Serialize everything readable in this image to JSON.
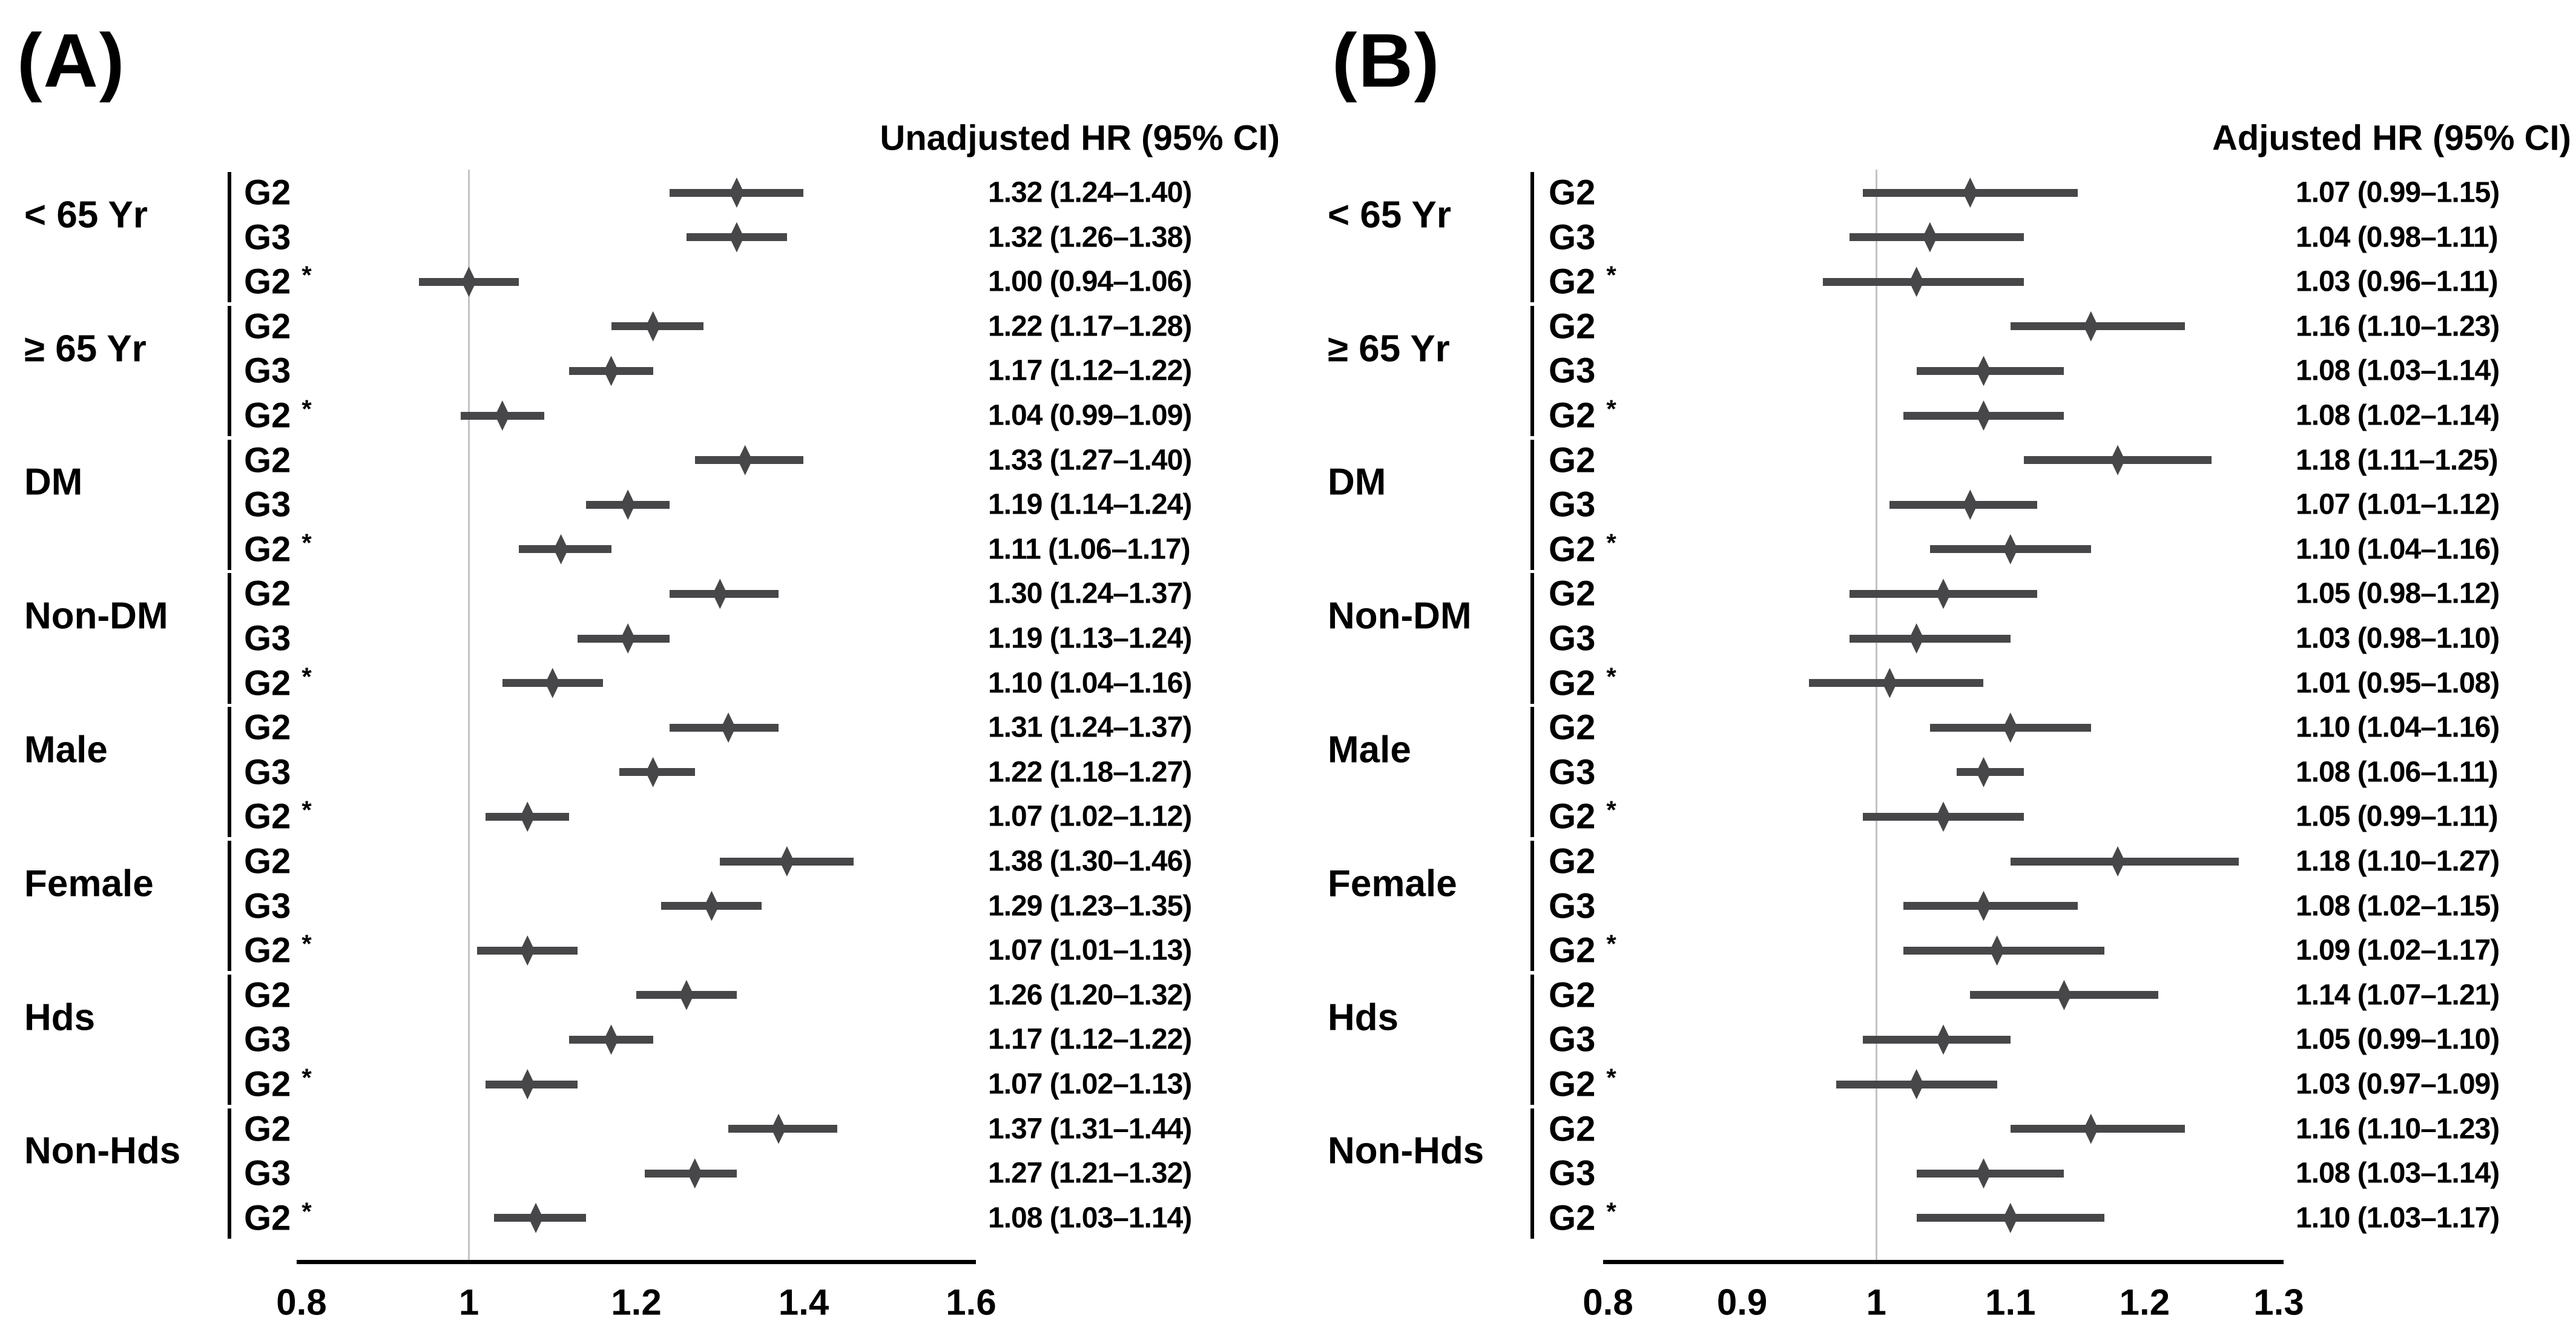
{
  "chart_data": [
    {
      "type": "forest",
      "panel": "A",
      "title": "(A)",
      "value_header": "Unadjusted HR (95% CI)",
      "xlim": [
        0.8,
        1.6
      ],
      "xticks": [
        0.8,
        1.0,
        1.2,
        1.4,
        1.6
      ],
      "xtick_labels": [
        "0.8",
        "1",
        "1.2",
        "1.4",
        "1.6"
      ],
      "ref_line": 1.0,
      "legend_position": "none",
      "grid": false,
      "groups": [
        {
          "label": "< 65 Yr",
          "rows": [
            {
              "label": "G2",
              "hr": 1.32,
              "ci": [
                1.24,
                1.4
              ],
              "text": "1.32 (1.24–1.40)"
            },
            {
              "label": "G3",
              "hr": 1.32,
              "ci": [
                1.26,
                1.38
              ],
              "text": "1.32 (1.26–1.38)"
            },
            {
              "label": "G2",
              "suffix": "*",
              "hr": 1.0,
              "ci": [
                0.94,
                1.06
              ],
              "text": "1.00 (0.94–1.06)"
            }
          ]
        },
        {
          "label": "≥ 65 Yr",
          "rows": [
            {
              "label": "G2",
              "hr": 1.22,
              "ci": [
                1.17,
                1.28
              ],
              "text": "1.22 (1.17–1.28)"
            },
            {
              "label": "G3",
              "hr": 1.17,
              "ci": [
                1.12,
                1.22
              ],
              "text": "1.17 (1.12–1.22)"
            },
            {
              "label": "G2",
              "suffix": "*",
              "hr": 1.04,
              "ci": [
                0.99,
                1.09
              ],
              "text": "1.04 (0.99–1.09)"
            }
          ]
        },
        {
          "label": "DM",
          "rows": [
            {
              "label": "G2",
              "hr": 1.33,
              "ci": [
                1.27,
                1.4
              ],
              "text": "1.33 (1.27–1.40)"
            },
            {
              "label": "G3",
              "hr": 1.19,
              "ci": [
                1.14,
                1.24
              ],
              "text": "1.19 (1.14–1.24)"
            },
            {
              "label": "G2",
              "suffix": "*",
              "hr": 1.11,
              "ci": [
                1.06,
                1.17
              ],
              "text": "1.11 (1.06–1.17)"
            }
          ]
        },
        {
          "label": "Non-DM",
          "rows": [
            {
              "label": "G2",
              "hr": 1.3,
              "ci": [
                1.24,
                1.37
              ],
              "text": "1.30 (1.24–1.37)"
            },
            {
              "label": "G3",
              "hr": 1.19,
              "ci": [
                1.13,
                1.24
              ],
              "text": "1.19 (1.13–1.24)"
            },
            {
              "label": "G2",
              "suffix": "*",
              "hr": 1.1,
              "ci": [
                1.04,
                1.16
              ],
              "text": "1.10 (1.04–1.16)"
            }
          ]
        },
        {
          "label": "Male",
          "rows": [
            {
              "label": "G2",
              "hr": 1.31,
              "ci": [
                1.24,
                1.37
              ],
              "text": "1.31 (1.24–1.37)"
            },
            {
              "label": "G3",
              "hr": 1.22,
              "ci": [
                1.18,
                1.27
              ],
              "text": "1.22 (1.18–1.27)"
            },
            {
              "label": "G2",
              "suffix": "*",
              "hr": 1.07,
              "ci": [
                1.02,
                1.12
              ],
              "text": "1.07 (1.02–1.12)"
            }
          ]
        },
        {
          "label": "Female",
          "rows": [
            {
              "label": "G2",
              "hr": 1.38,
              "ci": [
                1.3,
                1.46
              ],
              "text": "1.38 (1.30–1.46)"
            },
            {
              "label": "G3",
              "hr": 1.29,
              "ci": [
                1.23,
                1.35
              ],
              "text": "1.29 (1.23–1.35)"
            },
            {
              "label": "G2",
              "suffix": "*",
              "hr": 1.07,
              "ci": [
                1.01,
                1.13
              ],
              "text": "1.07 (1.01–1.13)"
            }
          ]
        },
        {
          "label": "Hds",
          "rows": [
            {
              "label": "G2",
              "hr": 1.26,
              "ci": [
                1.2,
                1.32
              ],
              "text": "1.26 (1.20–1.32)"
            },
            {
              "label": "G3",
              "hr": 1.17,
              "ci": [
                1.12,
                1.22
              ],
              "text": "1.17 (1.12–1.22)"
            },
            {
              "label": "G2",
              "suffix": "*",
              "hr": 1.07,
              "ci": [
                1.02,
                1.13
              ],
              "text": "1.07 (1.02–1.13)"
            }
          ]
        },
        {
          "label": "Non-Hds",
          "rows": [
            {
              "label": "G2",
              "hr": 1.37,
              "ci": [
                1.31,
                1.44
              ],
              "text": "1.37 (1.31–1.44)"
            },
            {
              "label": "G3",
              "hr": 1.27,
              "ci": [
                1.21,
                1.32
              ],
              "text": "1.27 (1.21–1.32)"
            },
            {
              "label": "G2",
              "suffix": "*",
              "hr": 1.08,
              "ci": [
                1.03,
                1.14
              ],
              "text": "1.08 (1.03–1.14)"
            }
          ]
        }
      ]
    },
    {
      "type": "forest",
      "panel": "B",
      "title": "(B)",
      "value_header": "Adjusted HR (95% CI)",
      "xlim": [
        0.8,
        1.3
      ],
      "xticks": [
        0.8,
        0.9,
        1.0,
        1.1,
        1.2,
        1.3
      ],
      "xtick_labels": [
        "0.8",
        "0.9",
        "1",
        "1.1",
        "1.2",
        "1.3"
      ],
      "ref_line": 1.0,
      "legend_position": "none",
      "grid": false,
      "groups": [
        {
          "label": "< 65 Yr",
          "rows": [
            {
              "label": "G2",
              "hr": 1.07,
              "ci": [
                0.99,
                1.15
              ],
              "text": "1.07 (0.99–1.15)"
            },
            {
              "label": "G3",
              "hr": 1.04,
              "ci": [
                0.98,
                1.11
              ],
              "text": "1.04 (0.98–1.11)"
            },
            {
              "label": "G2",
              "suffix": "*",
              "hr": 1.03,
              "ci": [
                0.96,
                1.11
              ],
              "text": "1.03 (0.96–1.11)"
            }
          ]
        },
        {
          "label": "≥ 65 Yr",
          "rows": [
            {
              "label": "G2",
              "hr": 1.16,
              "ci": [
                1.1,
                1.23
              ],
              "text": "1.16 (1.10–1.23)"
            },
            {
              "label": "G3",
              "hr": 1.08,
              "ci": [
                1.03,
                1.14
              ],
              "text": "1.08 (1.03–1.14)"
            },
            {
              "label": "G2",
              "suffix": "*",
              "hr": 1.08,
              "ci": [
                1.02,
                1.14
              ],
              "text": "1.08 (1.02–1.14)"
            }
          ]
        },
        {
          "label": "DM",
          "rows": [
            {
              "label": "G2",
              "hr": 1.18,
              "ci": [
                1.11,
                1.25
              ],
              "text": "1.18 (1.11–1.25)"
            },
            {
              "label": "G3",
              "hr": 1.07,
              "ci": [
                1.01,
                1.12
              ],
              "text": "1.07 (1.01–1.12)"
            },
            {
              "label": "G2",
              "suffix": "*",
              "hr": 1.1,
              "ci": [
                1.04,
                1.16
              ],
              "text": "1.10 (1.04–1.16)"
            }
          ]
        },
        {
          "label": "Non-DM",
          "rows": [
            {
              "label": "G2",
              "hr": 1.05,
              "ci": [
                0.98,
                1.12
              ],
              "text": "1.05 (0.98–1.12)"
            },
            {
              "label": "G3",
              "hr": 1.03,
              "ci": [
                0.98,
                1.1
              ],
              "text": "1.03 (0.98–1.10)"
            },
            {
              "label": "G2",
              "suffix": "*",
              "hr": 1.01,
              "ci": [
                0.95,
                1.08
              ],
              "text": "1.01 (0.95–1.08)"
            }
          ]
        },
        {
          "label": "Male",
          "rows": [
            {
              "label": "G2",
              "hr": 1.1,
              "ci": [
                1.04,
                1.16
              ],
              "text": "1.10 (1.04–1.16)"
            },
            {
              "label": "G3",
              "hr": 1.08,
              "ci": [
                1.06,
                1.11
              ],
              "text": "1.08 (1.06–1.11)"
            },
            {
              "label": "G2",
              "suffix": "*",
              "hr": 1.05,
              "ci": [
                0.99,
                1.11
              ],
              "text": "1.05 (0.99–1.11)"
            }
          ]
        },
        {
          "label": "Female",
          "rows": [
            {
              "label": "G2",
              "hr": 1.18,
              "ci": [
                1.1,
                1.27
              ],
              "text": "1.18 (1.10–1.27)"
            },
            {
              "label": "G3",
              "hr": 1.08,
              "ci": [
                1.02,
                1.15
              ],
              "text": "1.08 (1.02–1.15)"
            },
            {
              "label": "G2",
              "suffix": "*",
              "hr": 1.09,
              "ci": [
                1.02,
                1.17
              ],
              "text": "1.09 (1.02–1.17)"
            }
          ]
        },
        {
          "label": "Hds",
          "rows": [
            {
              "label": "G2",
              "hr": 1.14,
              "ci": [
                1.07,
                1.21
              ],
              "text": "1.14 (1.07–1.21)"
            },
            {
              "label": "G3",
              "hr": 1.05,
              "ci": [
                0.99,
                1.1
              ],
              "text": "1.05 (0.99–1.10)"
            },
            {
              "label": "G2",
              "suffix": "*",
              "hr": 1.03,
              "ci": [
                0.97,
                1.09
              ],
              "text": "1.03 (0.97–1.09)"
            }
          ]
        },
        {
          "label": "Non-Hds",
          "rows": [
            {
              "label": "G2",
              "hr": 1.16,
              "ci": [
                1.1,
                1.23
              ],
              "text": "1.16 (1.10–1.23)"
            },
            {
              "label": "G3",
              "hr": 1.08,
              "ci": [
                1.03,
                1.14
              ],
              "text": "1.08 (1.03–1.14)"
            },
            {
              "label": "G2",
              "suffix": "*",
              "hr": 1.1,
              "ci": [
                1.03,
                1.17
              ],
              "text": "1.10 (1.03–1.17)"
            }
          ]
        }
      ]
    }
  ],
  "colors": {
    "marker": "#47474a",
    "reference_line": "#c4c4c4",
    "axis": "#000000",
    "text": "#000000",
    "background": "#ffffff"
  }
}
